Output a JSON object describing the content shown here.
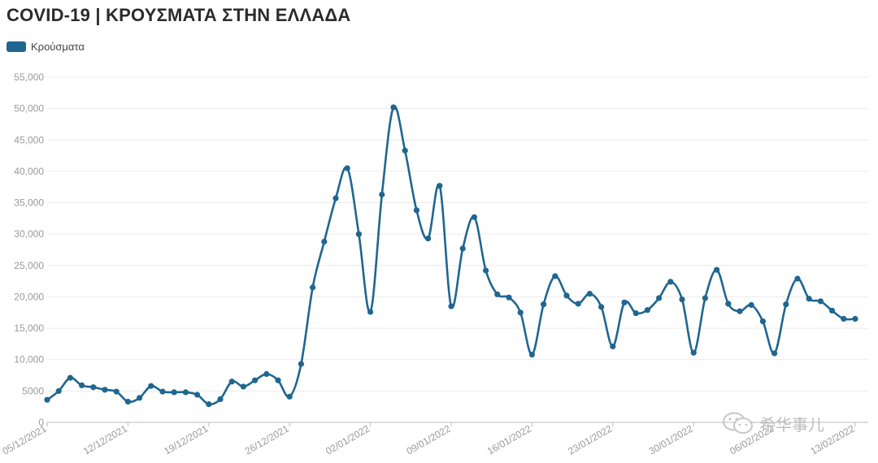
{
  "chart_data": {
    "type": "line",
    "title": "COVID-19 | ΚΡΟΥΣΜΑΤΑ ΣΤΗΝ ΕΛΛΑΔΑ",
    "legend": "top-left",
    "grid": true,
    "color": "#1f6690",
    "xlabel": "",
    "ylabel": "",
    "ylim": [
      0,
      55000
    ],
    "yticks": [
      "0",
      "5000",
      "10,000",
      "15,000",
      "20,000",
      "25,000",
      "30,000",
      "35,000",
      "40,000",
      "45,000",
      "50,000",
      "55,000"
    ],
    "xticks": [
      "05/12/2021",
      "12/12/2021",
      "19/12/2021",
      "26/12/2021",
      "02/01/2022",
      "09/01/2022",
      "16/01/2022",
      "23/01/2022",
      "30/01/2022",
      "06/02/2022",
      "13/02/2022"
    ],
    "series": [
      {
        "name": "Κρούσματα",
        "x": [
          "05/12/2021",
          "06/12/2021",
          "07/12/2021",
          "08/12/2021",
          "09/12/2021",
          "10/12/2021",
          "11/12/2021",
          "12/12/2021",
          "13/12/2021",
          "14/12/2021",
          "15/12/2021",
          "16/12/2021",
          "17/12/2021",
          "18/12/2021",
          "19/12/2021",
          "20/12/2021",
          "21/12/2021",
          "22/12/2021",
          "23/12/2021",
          "24/12/2021",
          "25/12/2021",
          "26/12/2021",
          "27/12/2021",
          "28/12/2021",
          "29/12/2021",
          "30/12/2021",
          "31/12/2021",
          "01/01/2022",
          "02/01/2022",
          "03/01/2022",
          "04/01/2022",
          "05/01/2022",
          "06/01/2022",
          "07/01/2022",
          "08/01/2022",
          "09/01/2022",
          "10/01/2022",
          "11/01/2022",
          "12/01/2022",
          "13/01/2022",
          "14/01/2022",
          "15/01/2022",
          "16/01/2022",
          "17/01/2022",
          "18/01/2022",
          "19/01/2022",
          "20/01/2022",
          "21/01/2022",
          "22/01/2022",
          "23/01/2022",
          "24/01/2022",
          "25/01/2022",
          "26/01/2022",
          "27/01/2022",
          "28/01/2022",
          "29/01/2022",
          "30/01/2022",
          "31/01/2022",
          "01/02/2022",
          "02/02/2022",
          "03/02/2022",
          "04/02/2022",
          "05/02/2022",
          "06/02/2022",
          "07/02/2022",
          "08/02/2022",
          "09/02/2022",
          "10/02/2022",
          "11/02/2022",
          "12/02/2022",
          "13/02/2022"
        ],
        "values": [
          3600,
          5000,
          7100,
          5900,
          5600,
          5200,
          4900,
          3300,
          3900,
          5800,
          4900,
          4800,
          4800,
          4400,
          2900,
          3700,
          6500,
          5700,
          6700,
          7700,
          6700,
          4100,
          9300,
          21500,
          28800,
          35700,
          40500,
          30000,
          17600,
          36300,
          50200,
          43300,
          33800,
          29300,
          37700,
          18500,
          27700,
          32700,
          24200,
          20400,
          19900,
          17500,
          10800,
          18800,
          23300,
          20200,
          18900,
          20500,
          18400,
          12100,
          19100,
          17400,
          17900,
          19800,
          22400,
          19600,
          11100,
          19800,
          24300,
          18900,
          17700,
          18700,
          16100,
          11000,
          18800,
          22900,
          19700,
          19300,
          17800,
          16500,
          16500
        ]
      }
    ]
  },
  "legend": {
    "label": "Κρούσματα"
  },
  "watermark": {
    "text": "希华事儿",
    "icon": "wechat-icon"
  }
}
